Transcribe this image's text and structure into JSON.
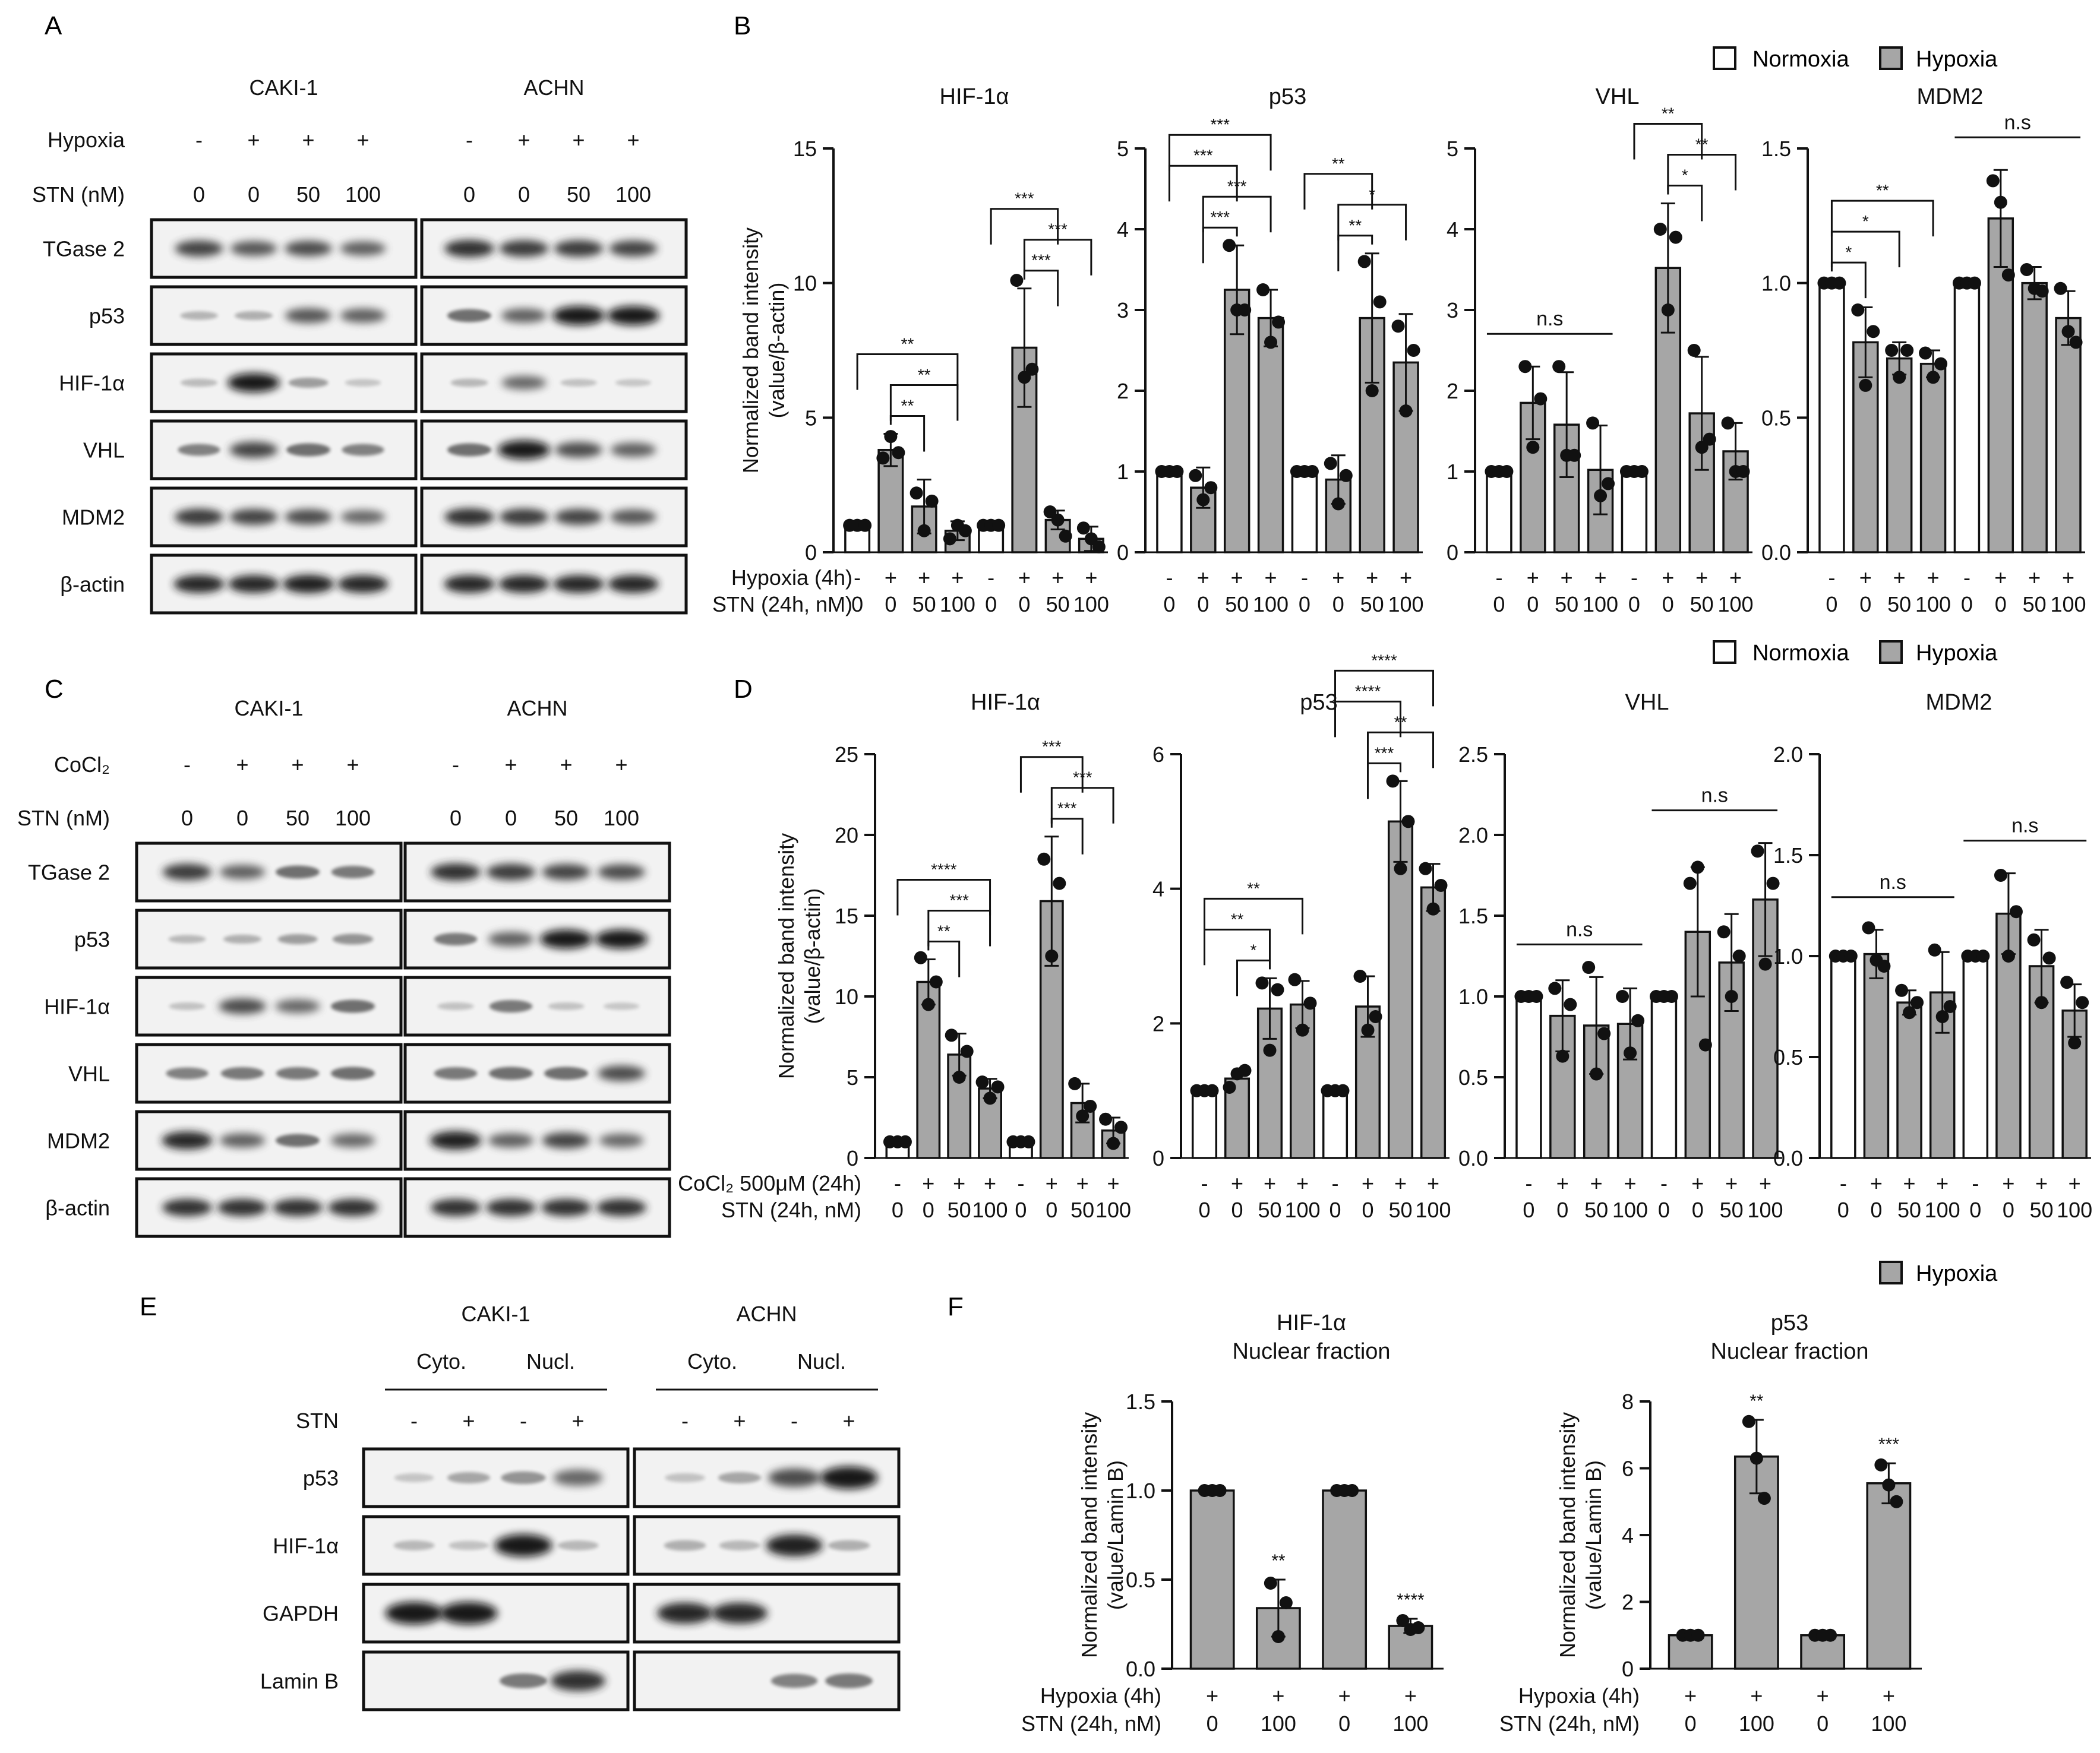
{
  "panels": {
    "A": "A",
    "B": "B",
    "C": "C",
    "D": "D",
    "E": "E",
    "F": "F"
  },
  "legend": {
    "normoxia": "Normoxia",
    "hypoxia": "Hypoxia"
  },
  "colors": {
    "bar_hyp": "#a6a6a6",
    "bar_norm": "#ffffff",
    "stroke": "#111111"
  },
  "blot_A": {
    "cells": [
      "CAKI-1",
      "ACHN"
    ],
    "cond_label": "Hypoxia",
    "cond": [
      "-",
      "+",
      "+",
      "+",
      "-",
      "+",
      "+",
      "+"
    ],
    "stn_label": "STN (nM)",
    "stn": [
      "0",
      "0",
      "50",
      "100",
      "0",
      "0",
      "50",
      "100"
    ],
    "proteins": [
      "TGase 2",
      "p53",
      "HIF-1α",
      "VHL",
      "MDM2",
      "β-actin"
    ],
    "intensity": [
      [
        0.75,
        0.65,
        0.7,
        0.6,
        0.85,
        0.8,
        0.8,
        0.75
      ],
      [
        0.12,
        0.15,
        0.65,
        0.6,
        0.5,
        0.6,
        1,
        1
      ],
      [
        0.08,
        1,
        0.25,
        0.03,
        0.1,
        0.55,
        0.05,
        0.02
      ],
      [
        0.4,
        0.75,
        0.5,
        0.4,
        0.5,
        1,
        0.7,
        0.6
      ],
      [
        0.8,
        0.75,
        0.7,
        0.55,
        0.85,
        0.8,
        0.75,
        0.65
      ],
      [
        0.9,
        0.9,
        0.95,
        0.9,
        0.9,
        0.9,
        0.9,
        0.9
      ]
    ]
  },
  "blot_C": {
    "cells": [
      "CAKI-1",
      "ACHN"
    ],
    "cond_label": "CoCl₂",
    "cond": [
      "-",
      "+",
      "+",
      "+",
      "-",
      "+",
      "+",
      "+"
    ],
    "stn_label": "STN (nM)",
    "stn": [
      "0",
      "0",
      "50",
      "100",
      "0",
      "0",
      "50",
      "100"
    ],
    "proteins": [
      "TGase 2",
      "p53",
      "HIF-1α",
      "VHL",
      "MDM2",
      "β-actin"
    ],
    "intensity": [
      [
        0.8,
        0.6,
        0.5,
        0.45,
        0.85,
        0.8,
        0.75,
        0.7
      ],
      [
        0.1,
        0.15,
        0.25,
        0.3,
        0.45,
        0.6,
        1,
        1
      ],
      [
        0.05,
        0.7,
        0.55,
        0.5,
        0.05,
        0.45,
        0.05,
        0.02
      ],
      [
        0.4,
        0.45,
        0.45,
        0.5,
        0.45,
        0.5,
        0.5,
        0.7
      ],
      [
        0.9,
        0.6,
        0.5,
        0.55,
        0.95,
        0.6,
        0.75,
        0.55
      ],
      [
        0.85,
        0.85,
        0.85,
        0.85,
        0.85,
        0.85,
        0.85,
        0.85
      ]
    ]
  },
  "blot_E": {
    "cells": [
      "CAKI-1",
      "ACHN"
    ],
    "fractions": [
      "Cyto.",
      "Nucl.",
      "Cyto.",
      "Nucl."
    ],
    "stn_label": "STN",
    "stn": [
      "-",
      "+",
      "-",
      "+",
      "-",
      "+",
      "-",
      "+"
    ],
    "proteins": [
      "p53",
      "HIF-1α",
      "GAPDH",
      "Lamin B"
    ],
    "intensity": [
      [
        0.03,
        0.2,
        0.3,
        0.55,
        0.05,
        0.2,
        0.7,
        1
      ],
      [
        0.1,
        0.05,
        1,
        0.1,
        0.15,
        0.1,
        0.95,
        0.15
      ],
      [
        1,
        1,
        0,
        0,
        0.9,
        0.9,
        0,
        0
      ],
      [
        0,
        0,
        0.45,
        0.85,
        0,
        0,
        0.4,
        0.45
      ]
    ]
  },
  "chart_data": [
    {
      "id": "B1",
      "type": "bar",
      "title": "HIF-1α",
      "ylabel": [
        "Normalized band intensity",
        "(value/β-actin)"
      ],
      "ylim": [
        0,
        15
      ],
      "yticks": [
        0,
        5,
        10,
        15
      ],
      "values": [
        1,
        3.8,
        1.7,
        0.8,
        1,
        7.6,
        1.2,
        0.5
      ],
      "errors": [
        0.1,
        0.6,
        1.0,
        0.35,
        0.05,
        2.2,
        0.35,
        0.45
      ],
      "points": [
        [
          1,
          1,
          1
        ],
        [
          3.5,
          4.3,
          3.7
        ],
        [
          2.2,
          0.8,
          1.9
        ],
        [
          0.5,
          1.0,
          0.8
        ],
        [
          1,
          1,
          1
        ],
        [
          10.1,
          6.5,
          6.8
        ],
        [
          1.5,
          1.2,
          0.6
        ],
        [
          0.9,
          0.5,
          0.2
        ]
      ],
      "sig": [
        {
          "a": 0,
          "b": 3,
          "t": "**"
        },
        {
          "a": 1,
          "b": 3,
          "t": "**"
        },
        {
          "a": 1,
          "b": 2,
          "t": "**"
        },
        {
          "a": 4,
          "b": 6,
          "t": "***"
        },
        {
          "a": 5,
          "b": 7,
          "t": "***"
        },
        {
          "a": 5,
          "b": 6,
          "t": "***"
        }
      ],
      "ns": [],
      "row1_label": "Hypoxia (4h)",
      "row2_label": "STN (24h, nM)",
      "row1": [
        "-",
        "+",
        "+",
        "+",
        "-",
        "+",
        "+",
        "+"
      ],
      "row2": [
        "0",
        "0",
        "50",
        "100",
        "0",
        "0",
        "50",
        "100"
      ]
    },
    {
      "id": "B2",
      "type": "bar",
      "title": "p53",
      "ylim": [
        0,
        5
      ],
      "yticks": [
        0,
        1,
        2,
        3,
        4,
        5
      ],
      "values": [
        1,
        0.8,
        3.25,
        2.9,
        1,
        0.9,
        2.9,
        2.35
      ],
      "errors": [
        0.05,
        0.25,
        0.55,
        0.35,
        0.05,
        0.3,
        0.8,
        0.6
      ],
      "points": [
        [
          1,
          1,
          1
        ],
        [
          0.95,
          0.65,
          0.8
        ],
        [
          3.8,
          3.0,
          3.0
        ],
        [
          3.25,
          2.6,
          2.85
        ],
        [
          1,
          1,
          1
        ],
        [
          1.1,
          0.6,
          0.95
        ],
        [
          3.6,
          2.0,
          3.1
        ],
        [
          2.8,
          1.75,
          2.5
        ]
      ],
      "sig": [
        {
          "a": 0,
          "b": 3,
          "t": "***"
        },
        {
          "a": 0,
          "b": 2,
          "t": "***"
        },
        {
          "a": 1,
          "b": 3,
          "t": "***"
        },
        {
          "a": 1,
          "b": 2,
          "t": "***"
        },
        {
          "a": 4,
          "b": 6,
          "t": "**"
        },
        {
          "a": 5,
          "b": 7,
          "t": "*"
        },
        {
          "a": 5,
          "b": 6,
          "t": "**"
        }
      ],
      "ns": [],
      "row1": [
        "-",
        "+",
        "+",
        "+",
        "-",
        "+",
        "+",
        "+"
      ],
      "row2": [
        "0",
        "0",
        "50",
        "100",
        "0",
        "0",
        "50",
        "100"
      ]
    },
    {
      "id": "B3",
      "type": "bar",
      "title": "VHL",
      "ylim": [
        0,
        5
      ],
      "yticks": [
        0,
        1,
        2,
        3,
        4,
        5
      ],
      "values": [
        1,
        1.85,
        1.58,
        1.02,
        1,
        3.52,
        1.72,
        1.25
      ],
      "errors": [
        0.05,
        0.45,
        0.65,
        0.55,
        0.05,
        0.8,
        0.7,
        0.35
      ],
      "points": [
        [
          1,
          1,
          1
        ],
        [
          2.3,
          1.3,
          1.9
        ],
        [
          2.3,
          1.2,
          1.2
        ],
        [
          1.6,
          0.7,
          0.85
        ],
        [
          1,
          1,
          1
        ],
        [
          4.0,
          3.0,
          3.9
        ],
        [
          2.5,
          1.3,
          1.4
        ],
        [
          1.6,
          1.0,
          1.0
        ]
      ],
      "sig": [
        {
          "a": 4,
          "b": 6,
          "t": "**"
        },
        {
          "a": 5,
          "b": 7,
          "t": "**"
        },
        {
          "a": 5,
          "b": 6,
          "t": "*"
        }
      ],
      "ns": [
        {
          "a": 0,
          "b": 3,
          "t": "n.s"
        }
      ],
      "row1": [
        "-",
        "+",
        "+",
        "+",
        "-",
        "+",
        "+",
        "+"
      ],
      "row2": [
        "0",
        "0",
        "50",
        "100",
        "0",
        "0",
        "50",
        "100"
      ]
    },
    {
      "id": "B4",
      "type": "bar",
      "title": "MDM2",
      "ylim": [
        0,
        1.5
      ],
      "yticks": [
        0,
        0.5,
        1.0,
        1.5
      ],
      "values": [
        1,
        0.78,
        0.72,
        0.7,
        1,
        1.24,
        1.0,
        0.87
      ],
      "errors": [
        0.01,
        0.13,
        0.06,
        0.05,
        0.01,
        0.18,
        0.06,
        0.1
      ],
      "points": [
        [
          1,
          1,
          1
        ],
        [
          0.9,
          0.62,
          0.82
        ],
        [
          0.75,
          0.65,
          0.75
        ],
        [
          0.74,
          0.65,
          0.7
        ],
        [
          1,
          1,
          1
        ],
        [
          1.38,
          1.3,
          1.03
        ],
        [
          1.05,
          0.98,
          0.97
        ],
        [
          0.98,
          0.82,
          0.78
        ]
      ],
      "sig": [
        {
          "a": 0,
          "b": 3,
          "t": "**"
        },
        {
          "a": 0,
          "b": 2,
          "t": "*"
        },
        {
          "a": 0,
          "b": 1,
          "t": "*"
        }
      ],
      "ns": [
        {
          "a": 4,
          "b": 7,
          "t": "n.s"
        }
      ],
      "row1": [
        "-",
        "+",
        "+",
        "+",
        "-",
        "+",
        "+",
        "+"
      ],
      "row2": [
        "0",
        "0",
        "50",
        "100",
        "0",
        "0",
        "50",
        "100"
      ]
    },
    {
      "id": "D1",
      "type": "bar",
      "title": "HIF-1α",
      "ylabel": [
        "Normalized band intensity",
        "(value/β-actin)"
      ],
      "ylim": [
        0,
        25
      ],
      "yticks": [
        0,
        5,
        10,
        15,
        20,
        25
      ],
      "values": [
        1,
        10.9,
        6.4,
        4.3,
        1,
        15.9,
        3.4,
        1.7
      ],
      "errors": [
        0.1,
        1.4,
        1.3,
        0.6,
        0.1,
        4.0,
        1.2,
        0.8
      ],
      "points": [
        [
          1,
          1,
          1
        ],
        [
          12.4,
          9.5,
          10.9
        ],
        [
          7.6,
          5.0,
          6.6
        ],
        [
          4.7,
          3.7,
          4.4
        ],
        [
          1,
          1,
          1
        ],
        [
          18.5,
          12.5,
          17.0
        ],
        [
          4.6,
          2.6,
          3.2
        ],
        [
          2.4,
          0.9,
          1.9
        ]
      ],
      "sig": [
        {
          "a": 0,
          "b": 3,
          "t": "****"
        },
        {
          "a": 1,
          "b": 3,
          "t": "***"
        },
        {
          "a": 1,
          "b": 2,
          "t": "**"
        },
        {
          "a": 4,
          "b": 6,
          "t": "***"
        },
        {
          "a": 5,
          "b": 7,
          "t": "***"
        },
        {
          "a": 5,
          "b": 6,
          "t": "***"
        }
      ],
      "ns": [],
      "row1_label": "CoCl₂ 500μM (24h)",
      "row2_label": "STN (24h, nM)",
      "row1": [
        "-",
        "+",
        "+",
        "+",
        "-",
        "+",
        "+",
        "+"
      ],
      "row2": [
        "0",
        "0",
        "50",
        "100",
        "0",
        "0",
        "50",
        "100"
      ]
    },
    {
      "id": "D2",
      "type": "bar",
      "title": "p53",
      "ylim": [
        0,
        6
      ],
      "yticks": [
        0,
        2,
        4,
        6
      ],
      "values": [
        1,
        1.18,
        2.22,
        2.28,
        1,
        2.25,
        5.0,
        4.02
      ],
      "errors": [
        0.05,
        0.1,
        0.45,
        0.35,
        0.05,
        0.45,
        0.6,
        0.35
      ],
      "points": [
        [
          1,
          1,
          1
        ],
        [
          1.05,
          1.25,
          1.3
        ],
        [
          2.6,
          1.6,
          2.5
        ],
        [
          2.65,
          1.9,
          2.3
        ],
        [
          1,
          1,
          1
        ],
        [
          2.7,
          1.9,
          2.1
        ],
        [
          5.6,
          4.3,
          5.0
        ],
        [
          4.3,
          3.7,
          4.05
        ]
      ],
      "sig": [
        {
          "a": 0,
          "b": 3,
          "t": "**"
        },
        {
          "a": 0,
          "b": 2,
          "t": "**"
        },
        {
          "a": 1,
          "b": 2,
          "t": "*"
        },
        {
          "a": 4,
          "b": 7,
          "t": "****"
        },
        {
          "a": 4,
          "b": 6,
          "t": "****"
        },
        {
          "a": 5,
          "b": 7,
          "t": "**"
        },
        {
          "a": 5,
          "b": 6,
          "t": "***"
        }
      ],
      "ns": [],
      "row1": [
        "-",
        "+",
        "+",
        "+",
        "-",
        "+",
        "+",
        "+"
      ],
      "row2": [
        "0",
        "0",
        "50",
        "100",
        "0",
        "0",
        "50",
        "100"
      ]
    },
    {
      "id": "D3",
      "type": "bar",
      "title": "VHL",
      "ylim": [
        0,
        2.5
      ],
      "yticks": [
        0,
        0.5,
        1.0,
        1.5,
        2.0,
        2.5
      ],
      "values": [
        1,
        0.88,
        0.82,
        0.83,
        1,
        1.4,
        1.21,
        1.6
      ],
      "errors": [
        0.02,
        0.22,
        0.3,
        0.22,
        0.02,
        0.4,
        0.3,
        0.35
      ],
      "points": [
        [
          1,
          1,
          1
        ],
        [
          1.05,
          0.63,
          0.95
        ],
        [
          1.18,
          0.52,
          0.77
        ],
        [
          1.0,
          0.65,
          0.85
        ],
        [
          1,
          1,
          1
        ],
        [
          1.7,
          1.8,
          0.7
        ],
        [
          1.4,
          1.0,
          1.25
        ],
        [
          1.9,
          1.2,
          1.7
        ]
      ],
      "sig": [],
      "ns": [
        {
          "a": 0,
          "b": 3,
          "t": "n.s"
        },
        {
          "a": 4,
          "b": 7,
          "t": "n.s"
        }
      ],
      "row1": [
        "-",
        "+",
        "+",
        "+",
        "-",
        "+",
        "+",
        "+"
      ],
      "row2": [
        "0",
        "0",
        "50",
        "100",
        "0",
        "0",
        "50",
        "100"
      ]
    },
    {
      "id": "D4",
      "type": "bar",
      "title": "MDM2",
      "ylim": [
        0,
        2.0
      ],
      "yticks": [
        0,
        0.5,
        1.0,
        1.5,
        2.0
      ],
      "values": [
        1,
        1.01,
        0.77,
        0.82,
        1,
        1.21,
        0.95,
        0.73
      ],
      "errors": [
        0.01,
        0.12,
        0.06,
        0.2,
        0.01,
        0.2,
        0.18,
        0.13
      ],
      "points": [
        [
          1,
          1,
          1
        ],
        [
          1.14,
          0.98,
          0.95
        ],
        [
          0.83,
          0.72,
          0.77
        ],
        [
          1.03,
          0.7,
          0.75
        ],
        [
          1,
          1,
          1
        ],
        [
          1.4,
          1.0,
          1.22
        ],
        [
          1.08,
          0.77,
          0.99
        ],
        [
          0.87,
          0.57,
          0.77
        ]
      ],
      "sig": [],
      "ns": [
        {
          "a": 0,
          "b": 3,
          "t": "n.s"
        },
        {
          "a": 4,
          "b": 7,
          "t": "n.s"
        }
      ],
      "row1": [
        "-",
        "+",
        "+",
        "+",
        "-",
        "+",
        "+",
        "+"
      ],
      "row2": [
        "0",
        "0",
        "50",
        "100",
        "0",
        "0",
        "50",
        "100"
      ]
    },
    {
      "id": "F1",
      "type": "bar",
      "title": "HIF-1α",
      "subtitle": "Nuclear fraction",
      "ylabel": [
        "Normalized band intensity",
        "(value/Lamin B)"
      ],
      "ylim": [
        0,
        1.5
      ],
      "yticks": [
        0,
        0.5,
        1.0,
        1.5
      ],
      "values": [
        1,
        0.34,
        1,
        0.24
      ],
      "errors": [
        0.01,
        0.16,
        0.01,
        0.04
      ],
      "points": [
        [
          1,
          1,
          1
        ],
        [
          0.48,
          0.18,
          0.37
        ],
        [
          1,
          1,
          1
        ],
        [
          0.27,
          0.22,
          0.23
        ]
      ],
      "stars": [
        "",
        "**",
        "",
        "****"
      ],
      "row1_label": "Hypoxia (4h)",
      "row2_label": "STN (24h, nM)",
      "row1": [
        "+",
        "+",
        "+",
        "+"
      ],
      "row2": [
        "0",
        "100",
        "0",
        "100"
      ]
    },
    {
      "id": "F2",
      "type": "bar",
      "title": "p53",
      "subtitle": "Nuclear fraction",
      "ylabel": [
        "Normalized band intensity",
        "(value/Lamin B)"
      ],
      "ylim": [
        0,
        8
      ],
      "yticks": [
        0,
        2,
        4,
        6,
        8
      ],
      "values": [
        1,
        6.35,
        1,
        5.55
      ],
      "errors": [
        0.01,
        1.1,
        0.01,
        0.6
      ],
      "points": [
        [
          1,
          1,
          1
        ],
        [
          7.4,
          6.3,
          5.1
        ],
        [
          1,
          1,
          1
        ],
        [
          6.1,
          5.5,
          5.0
        ]
      ],
      "stars": [
        "",
        "**",
        "",
        "***"
      ],
      "row1_label": "Hypoxia (4h)",
      "row2_label": "STN (24h, nM)",
      "row1": [
        "+",
        "+",
        "+",
        "+"
      ],
      "row2": [
        "0",
        "100",
        "0",
        "100"
      ]
    }
  ]
}
